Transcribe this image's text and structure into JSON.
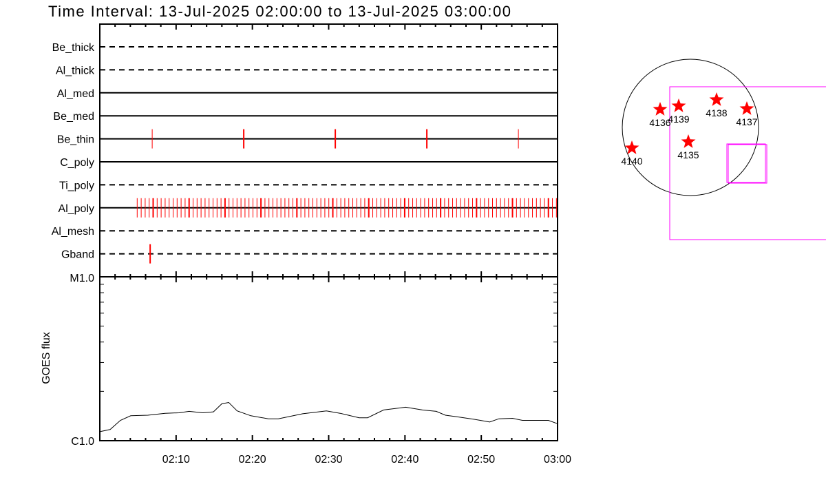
{
  "title": "Time Interval: 13-Jul-2025 02:00:00 to 13-Jul-2025 03:00:00",
  "colors": {
    "observation": "#ff0000",
    "fov": "#ff00ff",
    "axis": "#000000"
  },
  "chart_data": [
    {
      "type": "timeline",
      "x_range": [
        "02:00",
        "03:00"
      ],
      "rows": [
        {
          "name": "Be_thick",
          "line": "dashed",
          "observations": []
        },
        {
          "name": "Al_thick",
          "line": "dashed",
          "observations": []
        },
        {
          "name": "Al_med",
          "line": "solid",
          "observations": []
        },
        {
          "name": "Be_med",
          "line": "solid",
          "observations": []
        },
        {
          "name": "Be_thin",
          "line": "solid",
          "observations": [
            "02:06:52",
            "02:18:52",
            "02:30:52",
            "02:42:52",
            "02:54:52"
          ]
        },
        {
          "name": "C_poly",
          "line": "solid",
          "observations": []
        },
        {
          "name": "Ti_poly",
          "line": "dashed",
          "observations": []
        },
        {
          "name": "Al_poly",
          "line": "solid",
          "observations_start": "02:04:54",
          "observations_end": "02:59:54",
          "cadence_seconds": 31.4
        },
        {
          "name": "Al_mesh",
          "line": "dashed",
          "observations": []
        },
        {
          "name": "Gband",
          "line": "dashed",
          "observations": [
            "02:06:36"
          ]
        }
      ]
    },
    {
      "type": "line",
      "ylabel": "GOES flux",
      "yscale": "log",
      "ylim": [
        1e-06,
        1e-05
      ],
      "ytick_labels": [
        "C1.0",
        "M1.0"
      ],
      "x_ticks": [
        "02:10",
        "02:20",
        "02:30",
        "02:40",
        "02:50",
        "03:00"
      ],
      "x_range": [
        "02:00",
        "03:00"
      ],
      "series": [
        {
          "x": [
            "02:00:00",
            "02:01:21",
            "02:02:42",
            "02:04:03",
            "02:06:18",
            "02:08:34",
            "02:10:24",
            "02:11:42",
            "02:13:30",
            "02:14:54",
            "02:16:00",
            "02:16:54",
            "02:18:00",
            "02:19:48",
            "02:22:06",
            "02:23:24",
            "02:26:36",
            "02:29:42",
            "02:31:30",
            "02:34:00",
            "02:35:06",
            "02:37:12",
            "02:40:06",
            "02:42:18",
            "02:44:06",
            "02:45:18",
            "02:46:48",
            "02:49:06",
            "02:51:06",
            "02:52:18",
            "02:54:06",
            "02:55:24",
            "02:57:36",
            "02:58:48",
            "03:00:00"
          ],
          "y": [
            1.135e-06,
            1.17e-06,
            1.33e-06,
            1.42e-06,
            1.43e-06,
            1.47e-06,
            1.48e-06,
            1.51e-06,
            1.48e-06,
            1.5e-06,
            1.68e-06,
            1.71e-06,
            1.52e-06,
            1.42e-06,
            1.36e-06,
            1.36e-06,
            1.46e-06,
            1.52e-06,
            1.47e-06,
            1.38e-06,
            1.38e-06,
            1.54e-06,
            1.6e-06,
            1.54e-06,
            1.51e-06,
            1.43e-06,
            1.4e-06,
            1.35e-06,
            1.3e-06,
            1.36e-06,
            1.37e-06,
            1.33e-06,
            1.33e-06,
            1.33e-06,
            1.27e-06
          ]
        }
      ]
    }
  ],
  "context_map": {
    "active_regions": [
      "4136",
      "4139",
      "4138",
      "4137",
      "4140",
      "4135"
    ]
  }
}
